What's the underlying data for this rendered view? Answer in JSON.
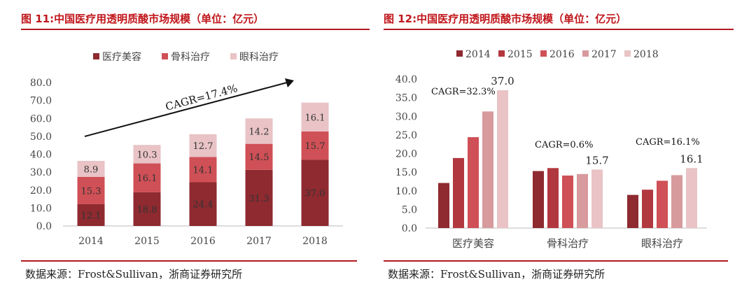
{
  "colors": {
    "c2014": "#8e2a30",
    "c2015": "#b23840",
    "c2016": "#cf5056",
    "c2017": "#d79a9d",
    "c2018": "#e9c3c5",
    "title": "#c0161b",
    "rule": "#b11a1f"
  },
  "left": {
    "fig_title": "图 11:中国医疗用透明质酸市场规模（单位：亿元）",
    "source": "数据来源：Frost&Sullivan，浙商证券研究所"
  },
  "right": {
    "fig_title": "图 12:中国医疗用透明质酸市场规模（单位：亿元）",
    "source": "数据来源：Frost&Sullivan，浙商证券研究所"
  },
  "chart_data": [
    {
      "type": "bar",
      "stacked": true,
      "categories": [
        "2014",
        "2015",
        "2016",
        "2017",
        "2018"
      ],
      "series": [
        {
          "name": "医疗美容",
          "values": [
            12.1,
            18.8,
            24.4,
            31.3,
            37.0
          ],
          "labels": [
            "12.1",
            "18.8",
            "24.4",
            "31.3",
            "37.0"
          ]
        },
        {
          "name": "骨科治疗",
          "values": [
            15.3,
            16.1,
            14.1,
            14.5,
            15.7
          ],
          "labels": [
            "15.3",
            "16.1",
            "14.1",
            "14.5",
            "15.7"
          ]
        },
        {
          "name": "眼科治疗",
          "values": [
            8.9,
            10.3,
            12.7,
            14.2,
            16.1
          ],
          "labels": [
            "8.9",
            "10.3",
            "12.7",
            "14.2",
            "16.1"
          ]
        }
      ],
      "ylim": [
        0,
        80
      ],
      "yticks": [
        "0.0",
        "10.0",
        "20.0",
        "30.0",
        "40.0",
        "50.0",
        "60.0",
        "70.0",
        "80.0"
      ],
      "annotation": "CAGR=17.4%",
      "legend": "top"
    },
    {
      "type": "bar",
      "categories": [
        "医疗美容",
        "骨科治疗",
        "眼科治疗"
      ],
      "series": [
        {
          "name": "2014",
          "values": [
            12.1,
            15.3,
            8.9
          ]
        },
        {
          "name": "2015",
          "values": [
            18.8,
            16.1,
            10.3
          ]
        },
        {
          "name": "2016",
          "values": [
            24.4,
            14.1,
            12.7
          ]
        },
        {
          "name": "2017",
          "values": [
            31.3,
            14.5,
            14.2
          ]
        },
        {
          "name": "2018",
          "values": [
            37.0,
            15.7,
            16.1
          ]
        }
      ],
      "ylim": [
        0,
        40
      ],
      "yticks": [
        "0.0",
        "5.0",
        "10.0",
        "15.0",
        "20.0",
        "25.0",
        "30.0",
        "35.0",
        "40.0"
      ],
      "value_labels": [
        "37.0",
        "15.7",
        "16.1"
      ],
      "annotations": [
        "CAGR=32.3%",
        "CAGR=0.6%",
        "CAGR=16.1%"
      ],
      "legend": "top"
    }
  ]
}
